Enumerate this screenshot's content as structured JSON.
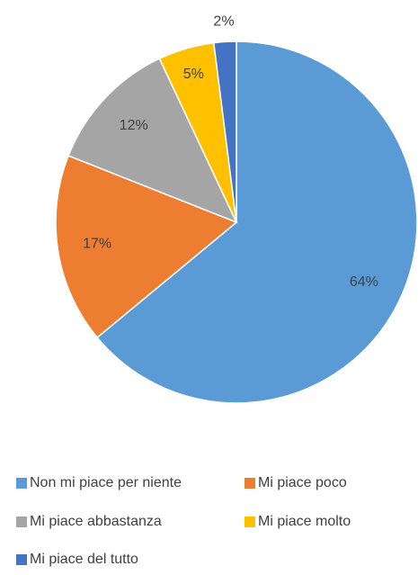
{
  "chart_data": {
    "type": "pie",
    "categories": [
      "Non mi piace per niente",
      "Mi piace poco",
      "Mi piace abbastanza",
      "Mi piace molto",
      "Mi piace del tutto"
    ],
    "values": [
      64,
      17,
      12,
      5,
      2
    ],
    "value_labels": [
      "64%",
      "17%",
      "12%",
      "5%",
      "2%"
    ],
    "colors": [
      "#5b9bd5",
      "#ed7d31",
      "#a5a5a5",
      "#ffc000",
      "#4472c4"
    ],
    "legend": "bottom"
  }
}
